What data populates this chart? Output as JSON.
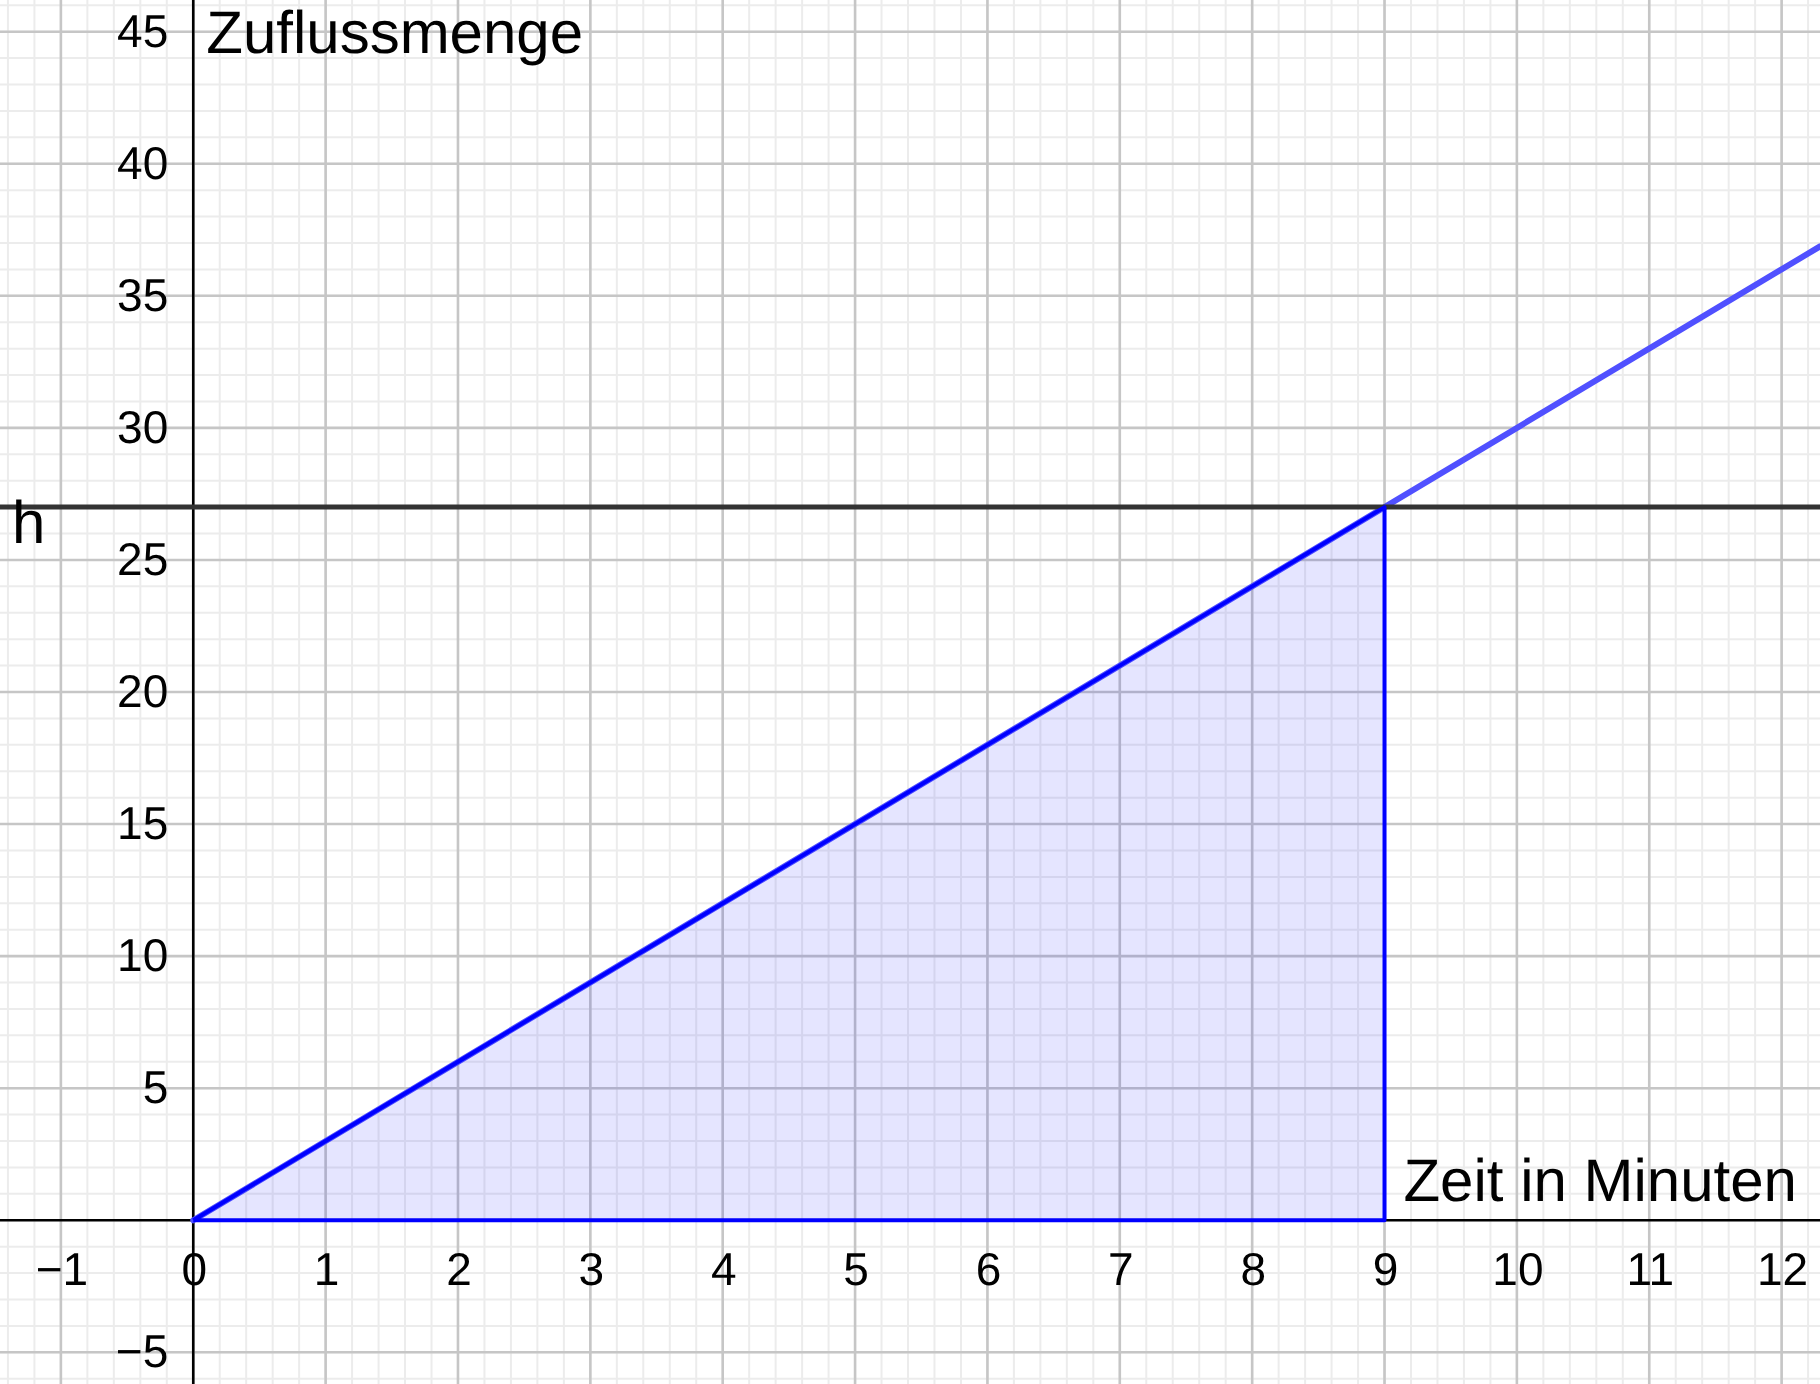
{
  "chart_data": {
    "type": "line",
    "xlabel": "Zeit in Minuten",
    "ylabel": "Zuflussmenge",
    "xlim": [
      -1.46,
      12.29
    ],
    "ylim": [
      -6.2,
      46.2
    ],
    "xticks": [
      -1,
      0,
      1,
      2,
      3,
      4,
      5,
      6,
      7,
      8,
      9,
      10,
      11,
      12
    ],
    "yticks": [
      -5,
      5,
      10,
      15,
      20,
      25,
      30,
      35,
      40,
      45
    ],
    "grid": true,
    "series": [
      {
        "color": "#5050ff",
        "x": [
          0,
          12.29
        ],
        "values": [
          0,
          36.87
        ]
      },
      {
        "type": "area",
        "color": "#0000ff",
        "x": [
          0,
          9
        ],
        "values": [
          0,
          27
        ]
      }
    ],
    "ref_lines": [
      {
        "axis": "y",
        "value": 27,
        "label": "h",
        "color": "#333333"
      }
    ]
  }
}
